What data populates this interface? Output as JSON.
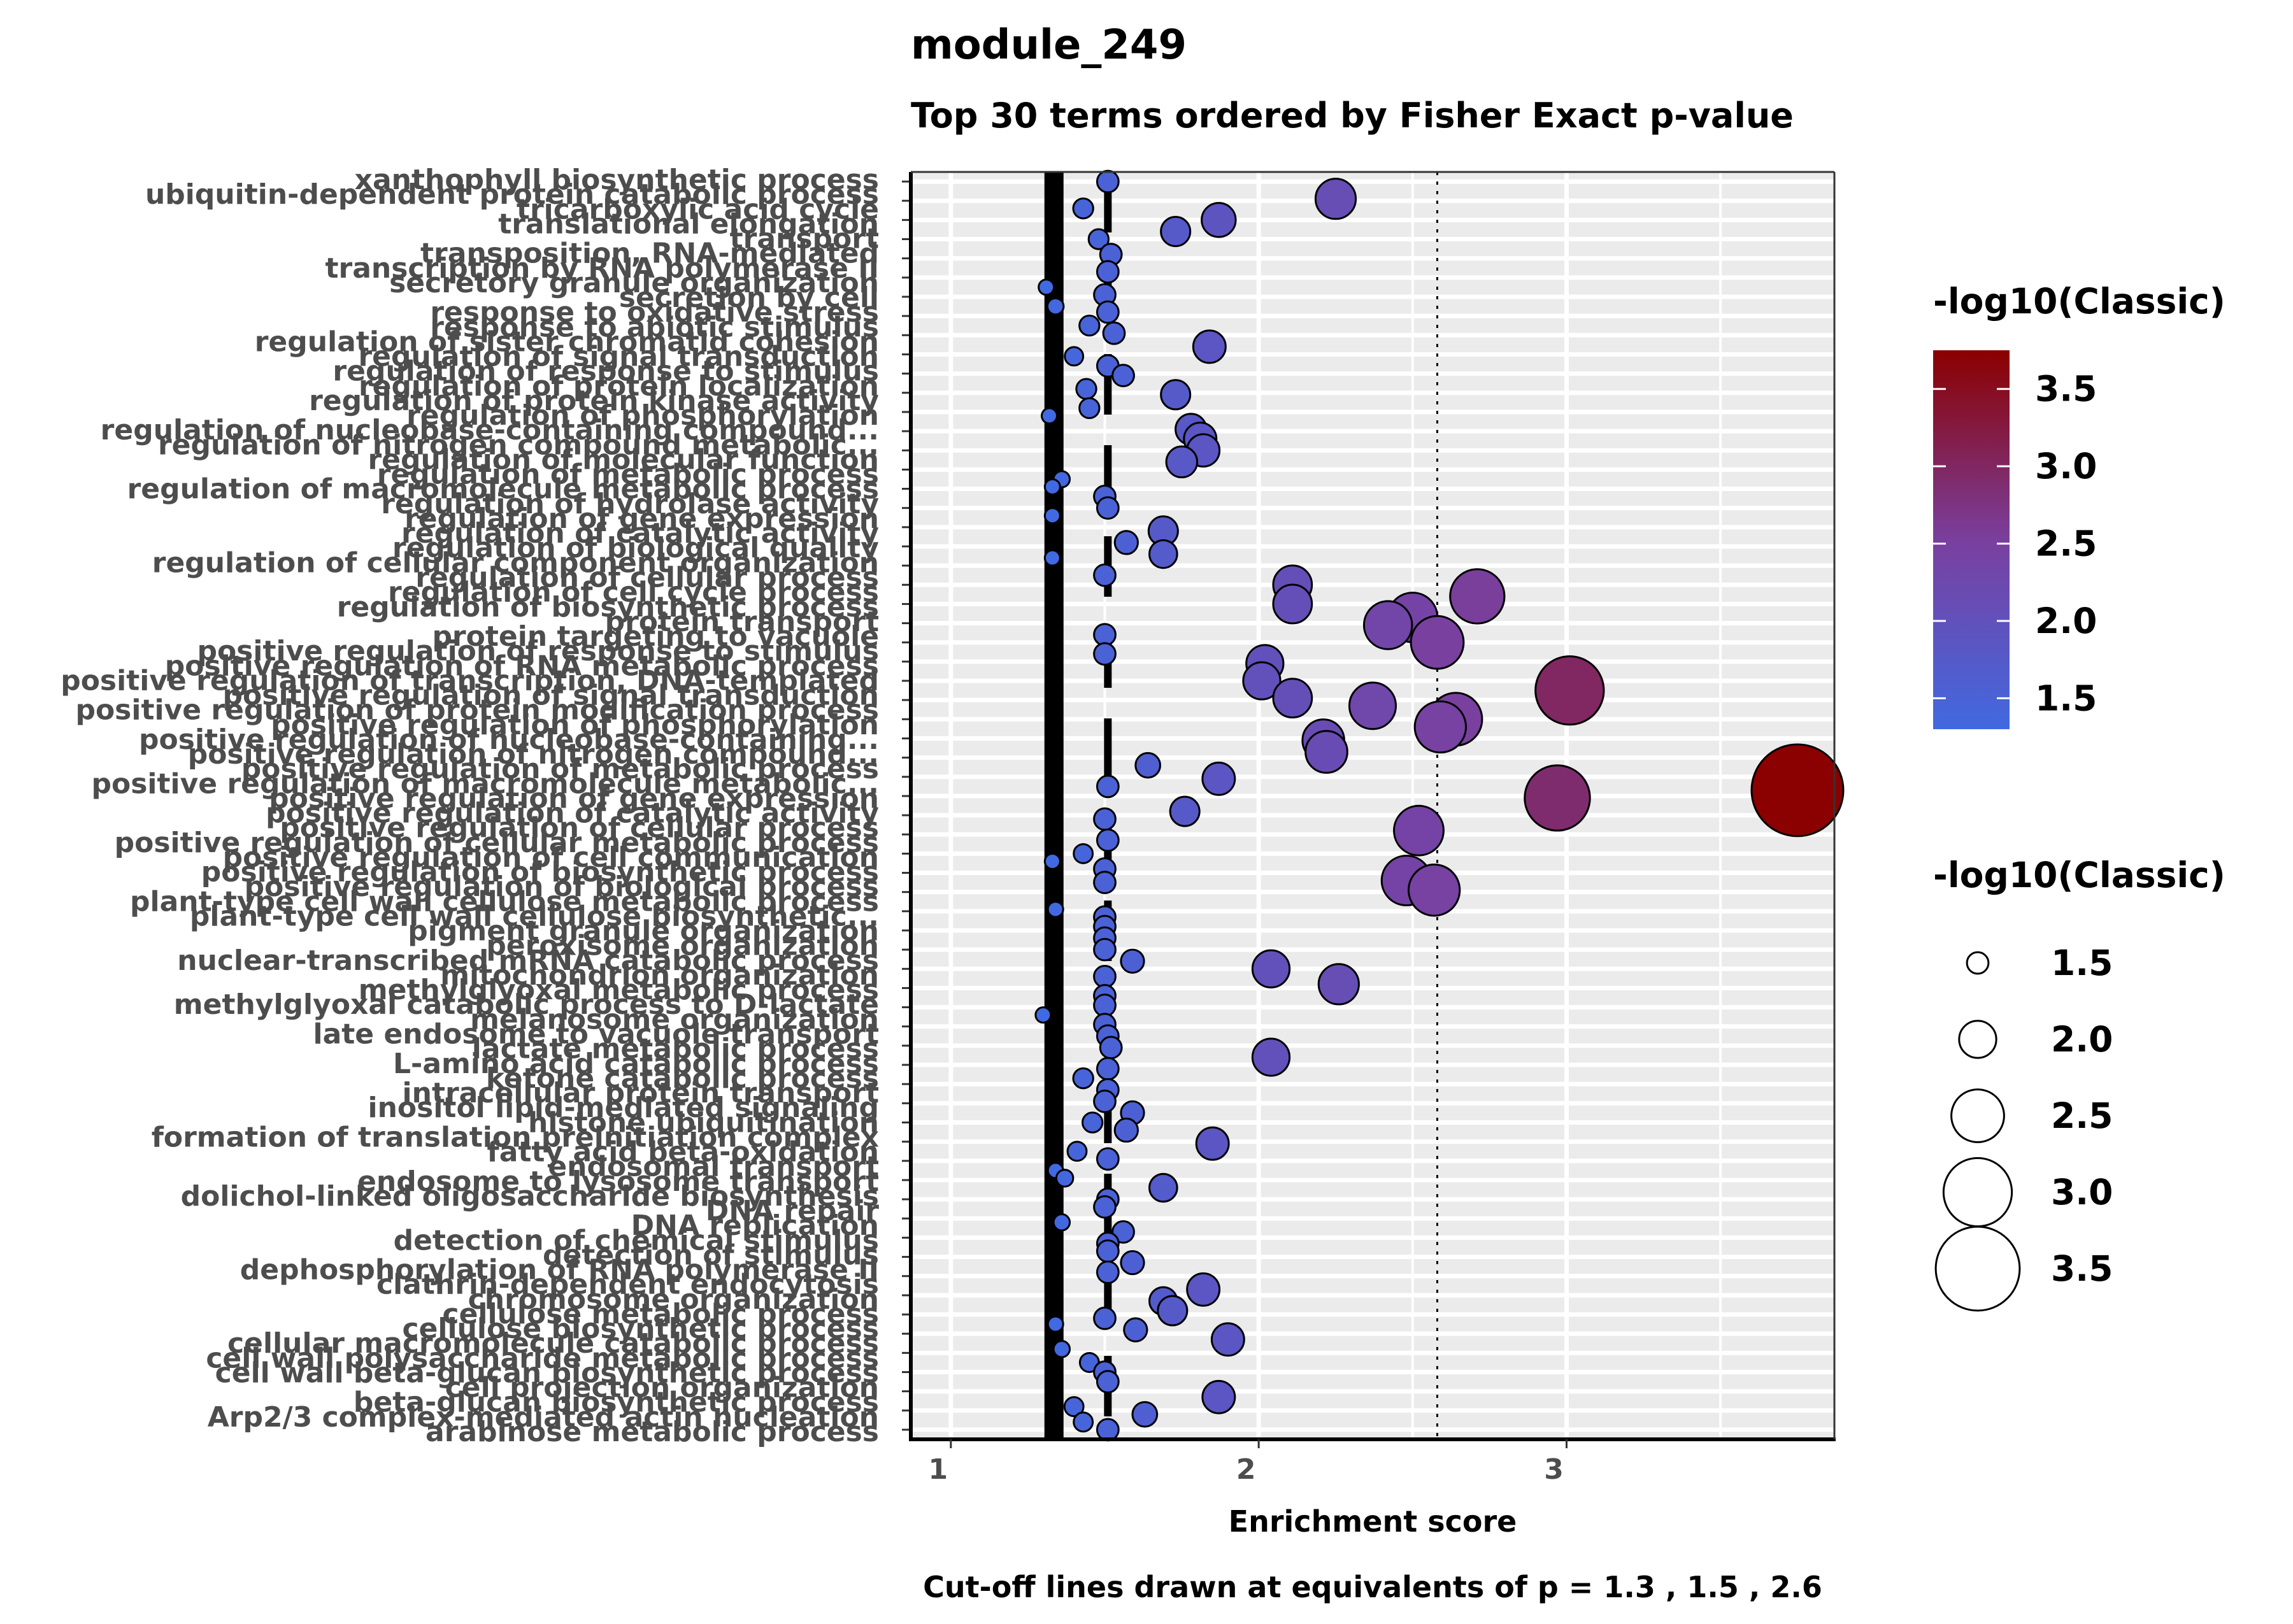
{
  "chart_data": {
    "type": "scatter",
    "title": "module_249",
    "subtitle": "Top 30 terms ordered by Fisher Exact p-value",
    "xlabel": "Enrichment score",
    "caption": "Cut-off lines drawn at equivalents of p = 1.3 , 1.5 , 2.6",
    "xlim": [
      0.87,
      3.87
    ],
    "x_ticks": [
      1,
      2,
      3
    ],
    "x_tick_labels": [
      "1",
      "2",
      "3"
    ],
    "cutoffs": [
      1.3,
      1.5,
      2.6
    ],
    "color_legend": {
      "title": "-log10(Classic)",
      "low_color": "#4169E1",
      "high_color": "#8B0000",
      "range": [
        1.3,
        3.75
      ],
      "labels": [
        "1.5",
        "2.0",
        "2.5",
        "3.0",
        "3.5"
      ],
      "values": [
        1.5,
        2.0,
        2.5,
        3.0,
        3.5
      ]
    },
    "size_legend": {
      "title": "-log10(Classic)",
      "labels": [
        "1.5",
        "2.0",
        "2.5",
        "3.0",
        "3.5"
      ],
      "values": [
        1.5,
        2.0,
        2.5,
        3.0,
        3.5
      ]
    },
    "y_labels": [
      "xanthophyll biosynthetic process",
      "ubiquitin-dependent protein catabolic process",
      "tricarboxylic acid cycle",
      "translational elongation",
      "transport",
      "transposition, RNA-mediated",
      "transcription by RNA polymerase II",
      "secretory granule organization",
      "secretion by cell",
      "response to oxidative stress",
      "response to abiotic stimulus",
      "regulation of sister chromatid cohesion",
      "regulation of signal transduction",
      "regulation of response to stimulus",
      "regulation of protein localization",
      "regulation of protein kinase activity",
      "regulation of phosphorylation",
      "regulation of nucleobase-containing compound...",
      "regulation of nitrogen compound metabolic...",
      "regulation of molecular function",
      "regulation of metabolic process",
      "regulation of macromolecule metabolic process",
      "regulation of hydrolase activity",
      "regulation of gene expression",
      "regulation of catalytic activity",
      "regulation of biological quality",
      "regulation of cellular component organization",
      "regulation of cellular process",
      "regulation of cell cycle process",
      "regulation of biosynthetic process",
      "protein transport",
      "protein targeting to vacuole",
      "positive regulation of response to stimulus",
      "positive regulation of RNA metabolic process",
      "positive regulation of transcription, DNA-templated",
      "positive regulation of signal transduction",
      "positive regulation of protein modification process",
      "positive regulation of phosphorylation",
      "positive regulation of nucleobase-containing...",
      "positive regulation of nitrogen compound...",
      "positive regulation of metabolic process",
      "positive regulation of macromolecule metabolic...",
      "positive regulation of gene expression",
      "positive regulation of catalytic activity",
      "positive regulation of cellular process",
      "positive regulation of cellular metabolic process",
      "positive regulation of cell communication",
      "positive regulation of biosynthetic process",
      "positive regulation of biological process",
      "plant-type cell wall cellulose metabolic process",
      "plant-type cell wall cellulose biosynthetic...",
      "pigment granule organization",
      "peroxisome organization",
      "nuclear-transcribed mRNA catabolic process",
      "mitochondrion organization",
      "methylglyoxal metabolic process",
      "methylglyoxal catabolic process to D-lactate",
      "melanosome organization",
      "late endosome to vacuole transport",
      "lactate metabolic process",
      "L-amino acid catabolic process",
      "ketone catabolic process",
      "intracellular protein transport",
      "inositol lipid-mediated signaling",
      "histone ubiquitination",
      "formation of translation preinitiation complex",
      "fatty acid beta-oxidation",
      "endosomal transport",
      "endosome to lysosome transport",
      "dolichol-linked oligosaccharide biosynthesis",
      "DNA repair",
      "DNA replication",
      "detection of chemical stimulus",
      "detection of stimulus",
      "dephosphorylation of RNA polymerase II",
      "clathrin-dependent endocytosis",
      "chromosome organization",
      "cellulose metabolic process",
      "cellulose biosynthetic process",
      "cellular macromolecule catabolic process",
      "cell wall polysaccharide metabolic process",
      "cell wall beta-glucan biosynthetic process",
      "cell projection organization",
      "beta-glucan biosynthetic process",
      "Arp2/3 complex-mediated actin nucleation",
      "arabinose metabolic process"
    ],
    "points": [
      {
        "x": 1.51,
        "y": 0.5,
        "v": 1.5
      },
      {
        "x": 2.25,
        "y": 1.4,
        "v": 2.1
      },
      {
        "x": 1.43,
        "y": 1.9,
        "v": 1.45
      },
      {
        "x": 1.87,
        "y": 2.5,
        "v": 1.9
      },
      {
        "x": 1.73,
        "y": 3.1,
        "v": 1.75
      },
      {
        "x": 1.48,
        "y": 3.5,
        "v": 1.45
      },
      {
        "x": 1.52,
        "y": 4.3,
        "v": 1.5
      },
      {
        "x": 1.51,
        "y": 5.2,
        "v": 1.5
      },
      {
        "x": 1.31,
        "y": 6.0,
        "v": 1.3
      },
      {
        "x": 1.5,
        "y": 6.4,
        "v": 1.5
      },
      {
        "x": 1.34,
        "y": 7.0,
        "v": 1.33
      },
      {
        "x": 1.51,
        "y": 7.3,
        "v": 1.5
      },
      {
        "x": 1.45,
        "y": 8.0,
        "v": 1.45
      },
      {
        "x": 1.53,
        "y": 8.4,
        "v": 1.5
      },
      {
        "x": 1.84,
        "y": 9.1,
        "v": 1.85
      },
      {
        "x": 1.4,
        "y": 9.6,
        "v": 1.4
      },
      {
        "x": 1.51,
        "y": 10.1,
        "v": 1.5
      },
      {
        "x": 1.56,
        "y": 10.6,
        "v": 1.5
      },
      {
        "x": 1.44,
        "y": 11.3,
        "v": 1.45
      },
      {
        "x": 1.73,
        "y": 11.6,
        "v": 1.75
      },
      {
        "x": 1.45,
        "y": 12.3,
        "v": 1.45
      },
      {
        "x": 1.32,
        "y": 12.7,
        "v": 1.3
      },
      {
        "x": 1.78,
        "y": 13.4,
        "v": 1.8
      },
      {
        "x": 1.81,
        "y": 13.9,
        "v": 1.85
      },
      {
        "x": 1.82,
        "y": 14.5,
        "v": 1.85
      },
      {
        "x": 1.75,
        "y": 15.1,
        "v": 1.8
      },
      {
        "x": 1.36,
        "y": 16.0,
        "v": 1.33
      },
      {
        "x": 1.33,
        "y": 16.4,
        "v": 1.3
      },
      {
        "x": 1.5,
        "y": 16.9,
        "v": 1.5
      },
      {
        "x": 1.51,
        "y": 17.5,
        "v": 1.5
      },
      {
        "x": 1.33,
        "y": 17.9,
        "v": 1.3
      },
      {
        "x": 1.69,
        "y": 18.7,
        "v": 1.75
      },
      {
        "x": 1.57,
        "y": 19.3,
        "v": 1.55
      },
      {
        "x": 1.69,
        "y": 19.9,
        "v": 1.7
      },
      {
        "x": 1.33,
        "y": 20.1,
        "v": 1.3
      },
      {
        "x": 1.5,
        "y": 21.0,
        "v": 1.5
      },
      {
        "x": 2.11,
        "y": 21.5,
        "v": 2.05
      },
      {
        "x": 2.71,
        "y": 22.1,
        "v": 2.55
      },
      {
        "x": 2.11,
        "y": 22.5,
        "v": 2.05
      },
      {
        "x": 2.5,
        "y": 23.2,
        "v": 2.4
      },
      {
        "x": 2.42,
        "y": 23.6,
        "v": 2.35
      },
      {
        "x": 2.58,
        "y": 24.5,
        "v": 2.5
      },
      {
        "x": 1.5,
        "y": 24.1,
        "v": 1.5
      },
      {
        "x": 1.5,
        "y": 25.1,
        "v": 1.5
      },
      {
        "x": 2.02,
        "y": 25.6,
        "v": 2.0
      },
      {
        "x": 2.01,
        "y": 26.5,
        "v": 2.0
      },
      {
        "x": 3.01,
        "y": 27.0,
        "v": 3.0
      },
      {
        "x": 2.11,
        "y": 27.4,
        "v": 2.05
      },
      {
        "x": 2.37,
        "y": 27.8,
        "v": 2.3
      },
      {
        "x": 2.64,
        "y": 28.5,
        "v": 2.5
      },
      {
        "x": 2.59,
        "y": 28.9,
        "v": 2.45
      },
      {
        "x": 2.21,
        "y": 29.6,
        "v": 2.15
      },
      {
        "x": 2.22,
        "y": 30.2,
        "v": 2.15
      },
      {
        "x": 1.64,
        "y": 30.9,
        "v": 1.6
      },
      {
        "x": 1.87,
        "y": 31.6,
        "v": 1.85
      },
      {
        "x": 1.51,
        "y": 32.0,
        "v": 1.5
      },
      {
        "x": 3.75,
        "y": 32.2,
        "v": 3.75
      },
      {
        "x": 2.97,
        "y": 32.6,
        "v": 2.9
      },
      {
        "x": 1.76,
        "y": 33.3,
        "v": 1.75
      },
      {
        "x": 1.5,
        "y": 33.7,
        "v": 1.5
      },
      {
        "x": 2.52,
        "y": 34.3,
        "v": 2.4
      },
      {
        "x": 1.51,
        "y": 34.8,
        "v": 1.5
      },
      {
        "x": 1.43,
        "y": 35.5,
        "v": 1.42
      },
      {
        "x": 1.33,
        "y": 35.9,
        "v": 1.3
      },
      {
        "x": 1.5,
        "y": 36.3,
        "v": 1.5
      },
      {
        "x": 2.48,
        "y": 36.9,
        "v": 2.4
      },
      {
        "x": 2.57,
        "y": 37.4,
        "v": 2.45
      },
      {
        "x": 1.5,
        "y": 37.0,
        "v": 1.5
      },
      {
        "x": 1.34,
        "y": 38.4,
        "v": 1.3
      },
      {
        "x": 1.5,
        "y": 38.8,
        "v": 1.5
      },
      {
        "x": 1.5,
        "y": 39.3,
        "v": 1.5
      },
      {
        "x": 1.5,
        "y": 39.9,
        "v": 1.5
      },
      {
        "x": 1.5,
        "y": 40.5,
        "v": 1.5
      },
      {
        "x": 1.59,
        "y": 41.1,
        "v": 1.55
      },
      {
        "x": 2.04,
        "y": 41.5,
        "v": 2.0
      },
      {
        "x": 1.5,
        "y": 41.9,
        "v": 1.5
      },
      {
        "x": 2.26,
        "y": 42.3,
        "v": 2.1
      },
      {
        "x": 1.5,
        "y": 42.9,
        "v": 1.5
      },
      {
        "x": 1.5,
        "y": 43.4,
        "v": 1.5
      },
      {
        "x": 1.3,
        "y": 43.9,
        "v": 1.3
      },
      {
        "x": 1.5,
        "y": 44.4,
        "v": 1.5
      },
      {
        "x": 1.51,
        "y": 45.0,
        "v": 1.5
      },
      {
        "x": 1.52,
        "y": 45.6,
        "v": 1.5
      },
      {
        "x": 2.04,
        "y": 46.1,
        "v": 2.0
      },
      {
        "x": 1.51,
        "y": 46.7,
        "v": 1.5
      },
      {
        "x": 1.43,
        "y": 47.2,
        "v": 1.45
      },
      {
        "x": 1.51,
        "y": 47.8,
        "v": 1.5
      },
      {
        "x": 1.5,
        "y": 48.4,
        "v": 1.5
      },
      {
        "x": 1.59,
        "y": 49.0,
        "v": 1.55
      },
      {
        "x": 1.46,
        "y": 49.5,
        "v": 1.45
      },
      {
        "x": 1.57,
        "y": 49.9,
        "v": 1.55
      },
      {
        "x": 1.85,
        "y": 50.6,
        "v": 1.85
      },
      {
        "x": 1.41,
        "y": 51.0,
        "v": 1.42
      },
      {
        "x": 1.51,
        "y": 51.4,
        "v": 1.5
      },
      {
        "x": 1.34,
        "y": 52.0,
        "v": 1.3
      },
      {
        "x": 1.37,
        "y": 52.4,
        "v": 1.35
      },
      {
        "x": 1.69,
        "y": 52.9,
        "v": 1.7
      },
      {
        "x": 1.51,
        "y": 53.5,
        "v": 1.5
      },
      {
        "x": 1.5,
        "y": 53.9,
        "v": 1.5
      },
      {
        "x": 1.36,
        "y": 54.7,
        "v": 1.33
      },
      {
        "x": 1.56,
        "y": 55.2,
        "v": 1.5
      },
      {
        "x": 1.51,
        "y": 55.8,
        "v": 1.5
      },
      {
        "x": 1.59,
        "y": 56.8,
        "v": 1.55
      },
      {
        "x": 1.51,
        "y": 56.2,
        "v": 1.5
      },
      {
        "x": 1.51,
        "y": 57.3,
        "v": 1.5
      },
      {
        "x": 1.82,
        "y": 58.2,
        "v": 1.85
      },
      {
        "x": 1.69,
        "y": 58.8,
        "v": 1.7
      },
      {
        "x": 1.72,
        "y": 59.3,
        "v": 1.75
      },
      {
        "x": 1.34,
        "y": 60.0,
        "v": 1.3
      },
      {
        "x": 1.6,
        "y": 60.3,
        "v": 1.55
      },
      {
        "x": 1.5,
        "y": 59.7,
        "v": 1.5
      },
      {
        "x": 1.9,
        "y": 60.8,
        "v": 1.85
      },
      {
        "x": 1.36,
        "y": 61.3,
        "v": 1.33
      },
      {
        "x": 1.45,
        "y": 62.0,
        "v": 1.42
      },
      {
        "x": 1.5,
        "y": 62.5,
        "v": 1.5
      },
      {
        "x": 1.51,
        "y": 63.0,
        "v": 1.5
      },
      {
        "x": 1.87,
        "y": 63.8,
        "v": 1.85
      },
      {
        "x": 1.4,
        "y": 64.3,
        "v": 1.42
      },
      {
        "x": 1.63,
        "y": 64.7,
        "v": 1.6
      },
      {
        "x": 1.43,
        "y": 65.1,
        "v": 1.42
      },
      {
        "x": 1.51,
        "y": 65.5,
        "v": 1.5
      }
    ]
  }
}
